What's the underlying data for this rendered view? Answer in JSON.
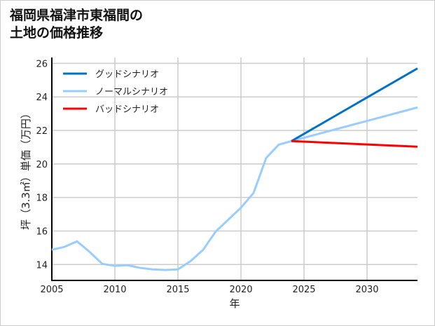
{
  "chart_data": {
    "type": "line",
    "title_lines": [
      "福岡県福津市東福間の",
      "土地の価格推移"
    ],
    "xlabel": "年",
    "ylabel": "坪（3.3㎡）単価（万円）",
    "xlim": [
      2005,
      2034
    ],
    "ylim": [
      13.05,
      26.35
    ],
    "xticks": [
      2005,
      2010,
      2015,
      2020,
      2025,
      2030
    ],
    "yticks": [
      14,
      16,
      18,
      20,
      22,
      24,
      26
    ],
    "grid": true,
    "legend_position": "top-left",
    "series": [
      {
        "name": "グッドシナリオ",
        "color": "#0072c6",
        "x": [
          2024,
          2034
        ],
        "values": [
          21.36,
          25.7
        ]
      },
      {
        "name": "ノーマルシナリオ",
        "color": "#99ccff",
        "x": [
          2005,
          2006,
          2007,
          2008,
          2009,
          2010,
          2011,
          2012,
          2013,
          2014,
          2015,
          2016,
          2017,
          2018,
          2019,
          2020,
          2021,
          2022,
          2023,
          2024,
          2034
        ],
        "values": [
          14.88,
          15.05,
          15.38,
          14.75,
          14.04,
          13.92,
          13.96,
          13.8,
          13.71,
          13.67,
          13.71,
          14.2,
          14.88,
          15.97,
          16.68,
          17.39,
          18.27,
          20.36,
          21.15,
          21.36,
          23.37
        ]
      },
      {
        "name": "バッドシナリオ",
        "color": "#ff0000",
        "x": [
          2024,
          2034
        ],
        "values": [
          21.36,
          21.03
        ]
      }
    ]
  }
}
